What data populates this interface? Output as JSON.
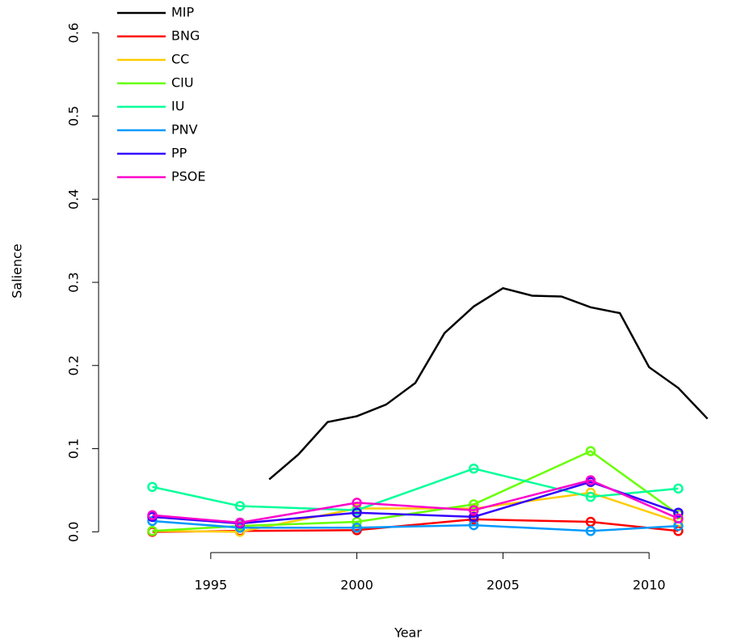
{
  "chart_data": {
    "type": "line",
    "xlabel": "Year",
    "ylabel": "Salience",
    "xlim": [
      1992.24,
      2012.76
    ],
    "xticks": [
      1995,
      2000,
      2005,
      2010
    ],
    "ylim": [
      -0.024,
      0.624
    ],
    "yticks": [
      {
        "value": 0,
        "label": "0.0"
      },
      0.1,
      0.2,
      0.3,
      0.4,
      0.5,
      0.6
    ],
    "legend": "top-left",
    "series": [
      {
        "name": "MIP",
        "color": "#000000",
        "markers": false,
        "x": [
          1997,
          1998,
          1999,
          2000,
          2001,
          2002,
          2003,
          2004,
          2005,
          2006,
          2007,
          2008,
          2009,
          2010,
          2011,
          2012
        ],
        "values": [
          0.063,
          0.093,
          0.132,
          0.139,
          0.153,
          0.179,
          0.239,
          0.271,
          0.293,
          0.284,
          0.283,
          0.27,
          0.263,
          0.198,
          0.173,
          0.136
        ]
      },
      {
        "name": "BNG",
        "color": "#ff0000",
        "markers": true,
        "x": [
          1993,
          1996,
          2000,
          2004,
          2008,
          2011
        ],
        "values": [
          0.0,
          0.001,
          0.002,
          0.015,
          0.012,
          0.001
        ]
      },
      {
        "name": "CC",
        "color": "#ffcc00",
        "markers": true,
        "x": [
          1993,
          1996,
          2000,
          2004,
          2008,
          2011
        ],
        "values": [
          0.001,
          0.0,
          0.028,
          0.028,
          0.047,
          0.012
        ]
      },
      {
        "name": "CIU",
        "color": "#66ff00",
        "markers": true,
        "x": [
          1993,
          1996,
          2000,
          2004,
          2008,
          2011
        ],
        "values": [
          0.001,
          0.007,
          0.012,
          0.033,
          0.097,
          0.021
        ]
      },
      {
        "name": "IU",
        "color": "#00ff99",
        "markers": true,
        "x": [
          1993,
          1996,
          2000,
          2004,
          2008,
          2011
        ],
        "values": [
          0.054,
          0.031,
          0.026,
          0.076,
          0.042,
          0.052
        ]
      },
      {
        "name": "PNV",
        "color": "#0099ff",
        "markers": true,
        "x": [
          1993,
          1996,
          2000,
          2004,
          2008,
          2011
        ],
        "values": [
          0.013,
          0.005,
          0.005,
          0.008,
          0.001,
          0.007
        ]
      },
      {
        "name": "PP",
        "color": "#3300ff",
        "markers": true,
        "x": [
          1993,
          1996,
          2000,
          2004,
          2008,
          2011
        ],
        "values": [
          0.018,
          0.01,
          0.023,
          0.018,
          0.06,
          0.023
        ]
      },
      {
        "name": "PSOE",
        "color": "#ff00cc",
        "markers": true,
        "x": [
          1993,
          1996,
          2000,
          2004,
          2008,
          2011
        ],
        "values": [
          0.02,
          0.011,
          0.035,
          0.026,
          0.062,
          0.016
        ]
      }
    ]
  }
}
